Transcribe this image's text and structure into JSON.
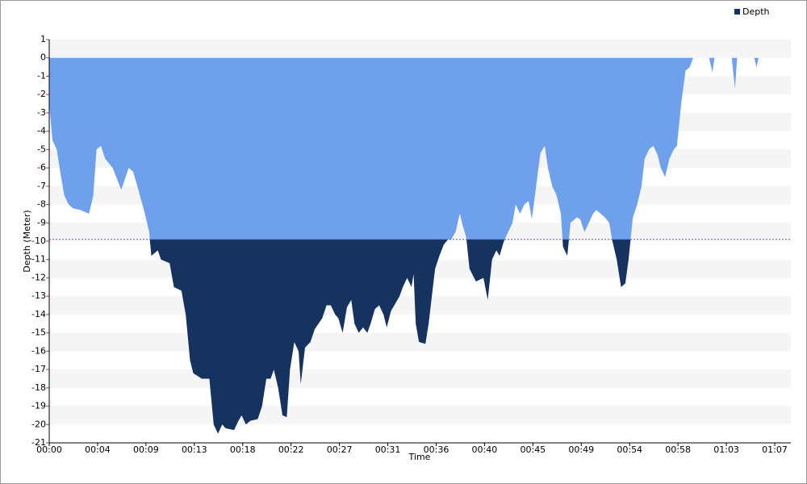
{
  "chart_data": {
    "type": "area",
    "x_label": "Time",
    "y_label": "Depth (Meter)",
    "xlim": [
      0,
      69
    ],
    "xticks": [
      {
        "value": 0,
        "label": "00:00"
      },
      {
        "value": 4.5,
        "label": "00:04"
      },
      {
        "value": 9,
        "label": "00:09"
      },
      {
        "value": 13.5,
        "label": "00:13"
      },
      {
        "value": 18,
        "label": "00:18"
      },
      {
        "value": 22.5,
        "label": "00:22"
      },
      {
        "value": 27,
        "label": "00:27"
      },
      {
        "value": 31.5,
        "label": "00:31"
      },
      {
        "value": 36,
        "label": "00:36"
      },
      {
        "value": 40.5,
        "label": "00:40"
      },
      {
        "value": 45,
        "label": "00:45"
      },
      {
        "value": 49.5,
        "label": "00:49"
      },
      {
        "value": 54,
        "label": "00:54"
      },
      {
        "value": 58.5,
        "label": "00:58"
      },
      {
        "value": 63,
        "label": "01:03"
      },
      {
        "value": 67.5,
        "label": "01:07"
      }
    ],
    "ylim": [
      -21,
      1
    ],
    "yticks": [
      -21,
      -20,
      -19,
      -18,
      -17,
      -16,
      -15,
      -14,
      -13,
      -12,
      -11,
      -10,
      -9,
      -8,
      -7,
      -6,
      -5,
      -4,
      -3,
      -2,
      -1,
      0,
      1
    ],
    "grid": "bands",
    "threshold": -9.9,
    "legend": "top-right",
    "x": [
      0,
      0.3,
      0.7,
      1.1,
      1.4,
      1.8,
      2.2,
      2.9,
      3.7,
      4.1,
      4.4,
      4.8,
      5.2,
      5.9,
      6.7,
      7.1,
      7.4,
      7.8,
      8.2,
      8.9,
      9.3,
      9.5,
      10.1,
      10.4,
      11.2,
      11.6,
      12.3,
      12.7,
      13.1,
      13.4,
      14.2,
      14.9,
      15.3,
      15.7,
      16.1,
      16.4,
      17.2,
      17.6,
      17.9,
      18.3,
      18.7,
      19.4,
      19.8,
      20.2,
      20.6,
      20.9,
      21.3,
      21.7,
      22.1,
      22.4,
      22.8,
      23.2,
      23.4,
      23.8,
      24.3,
      24.7,
      25.4,
      25.8,
      26.2,
      26.6,
      26.9,
      27.3,
      27.7,
      28.1,
      28.4,
      28.8,
      29.2,
      29.6,
      29.9,
      30.3,
      30.7,
      31.1,
      31.4,
      31.8,
      32.2,
      32.6,
      32.9,
      33.3,
      33.7,
      33.9,
      34.1,
      34.4,
      35,
      35.3,
      35.6,
      35.9,
      36.3,
      36.7,
      37.1,
      37.4,
      37.8,
      38.2,
      38.4,
      38.8,
      39.1,
      39.7,
      40.4,
      40.8,
      41.2,
      41.6,
      41.9,
      42.3,
      42.7,
      43.1,
      43.4,
      43.8,
      44.2,
      44.6,
      44.9,
      45.3,
      45.7,
      46.1,
      46.4,
      46.8,
      47.2,
      47.6,
      47.8,
      48.2,
      48.5,
      49.1,
      49.4,
      49.8,
      50.2,
      50.6,
      50.9,
      51.3,
      51.7,
      52.1,
      52.4,
      52.8,
      53.2,
      53.6,
      53.9,
      54.3,
      54.7,
      55.1,
      55.4,
      55.8,
      56.2,
      56.6,
      56.9,
      57.3,
      57.7,
      58.1,
      58.4,
      58.8,
      59.2,
      59.6,
      59.9,
      61.4,
      61.7,
      61.9,
      63.5,
      63.8,
      64,
      65.6,
      65.8,
      66
    ],
    "series": [
      {
        "name": "Depth",
        "color": "#16325f",
        "above_color": "#6fa0ec",
        "values": [
          -2.5,
          -4.5,
          -5,
          -6.5,
          -7.5,
          -8,
          -8.2,
          -8.3,
          -8.5,
          -7.5,
          -5,
          -4.8,
          -5.5,
          -6,
          -7.2,
          -6.5,
          -6,
          -6.2,
          -7,
          -8.5,
          -9.5,
          -10.8,
          -10.5,
          -11,
          -11.2,
          -12.5,
          -12.7,
          -14,
          -16.5,
          -17.2,
          -17.5,
          -17.5,
          -20,
          -20.5,
          -20,
          -20.2,
          -20.3,
          -19.8,
          -19.5,
          -20,
          -19.8,
          -19.7,
          -19,
          -17.5,
          -17.5,
          -17,
          -18,
          -19.5,
          -19.6,
          -17,
          -15.5,
          -16,
          -17.8,
          -15.8,
          -15.5,
          -14.8,
          -14.2,
          -13.5,
          -13.5,
          -14,
          -14.2,
          -15,
          -13.6,
          -13.2,
          -14.5,
          -15,
          -14.7,
          -15,
          -14.5,
          -13.7,
          -13.5,
          -14,
          -14.7,
          -13.8,
          -13.4,
          -13,
          -12.5,
          -12,
          -12.5,
          -11.8,
          -14.5,
          -15.5,
          -15.6,
          -14.5,
          -13,
          -11.5,
          -10.8,
          -10.2,
          -9.9,
          -9.9,
          -9.5,
          -8.5,
          -9,
          -9.8,
          -11.5,
          -12.2,
          -12,
          -13.2,
          -11,
          -10.5,
          -10.8,
          -10,
          -9.5,
          -9,
          -8,
          -8.5,
          -8,
          -7.8,
          -8.8,
          -7,
          -5.2,
          -4.8,
          -6,
          -7,
          -7.5,
          -8.5,
          -10.3,
          -10.8,
          -9,
          -8.7,
          -8.8,
          -9.5,
          -9,
          -8.5,
          -8.3,
          -8.5,
          -8.7,
          -9,
          -10,
          -11,
          -12.5,
          -12.3,
          -11,
          -8.7,
          -8,
          -7,
          -5.5,
          -5,
          -4.8,
          -5.3,
          -6,
          -6.5,
          -5.5,
          -5,
          -4.8,
          -2.5,
          -0.7,
          -0.5,
          0,
          0,
          -0.8,
          0,
          0,
          -1.7,
          0,
          0,
          -0.5,
          0
        ]
      }
    ]
  }
}
